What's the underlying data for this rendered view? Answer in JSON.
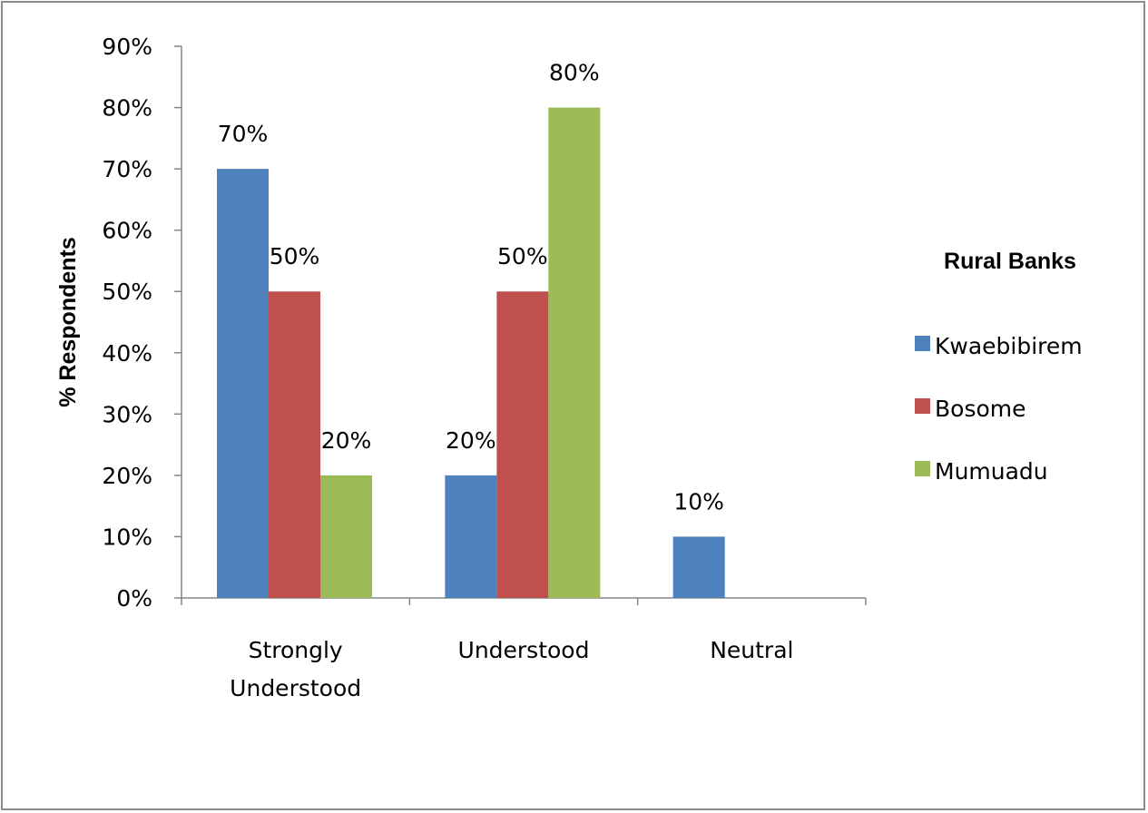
{
  "chart_data": {
    "type": "bar",
    "categories": [
      [
        "Strongly",
        "Understood"
      ],
      [
        "Understood"
      ],
      [
        "Neutral"
      ]
    ],
    "series": [
      {
        "name": "Kwaebibirem",
        "color": "#4F81BD",
        "values": [
          70,
          20,
          10
        ],
        "labels": [
          "70%",
          "20%",
          "10%"
        ]
      },
      {
        "name": "Bosome",
        "color": "#C0504D",
        "values": [
          50,
          50,
          0
        ],
        "labels": [
          "50%",
          "50%",
          null
        ]
      },
      {
        "name": "Mumuadu",
        "color": "#9BBB59",
        "values": [
          20,
          80,
          0
        ],
        "labels": [
          "20%",
          "80%",
          null
        ]
      }
    ],
    "ylabel": "% Respondents",
    "xlabel": "",
    "ylim": [
      0,
      90
    ],
    "yticks": [
      0,
      10,
      20,
      30,
      40,
      50,
      60,
      70,
      80,
      90
    ],
    "ytick_labels": [
      "0%",
      "10%",
      "20%",
      "30%",
      "40%",
      "50%",
      "60%",
      "70%",
      "80%",
      "90%"
    ],
    "legend_title": "Rural Banks",
    "legend_position": "right",
    "grid": false
  }
}
